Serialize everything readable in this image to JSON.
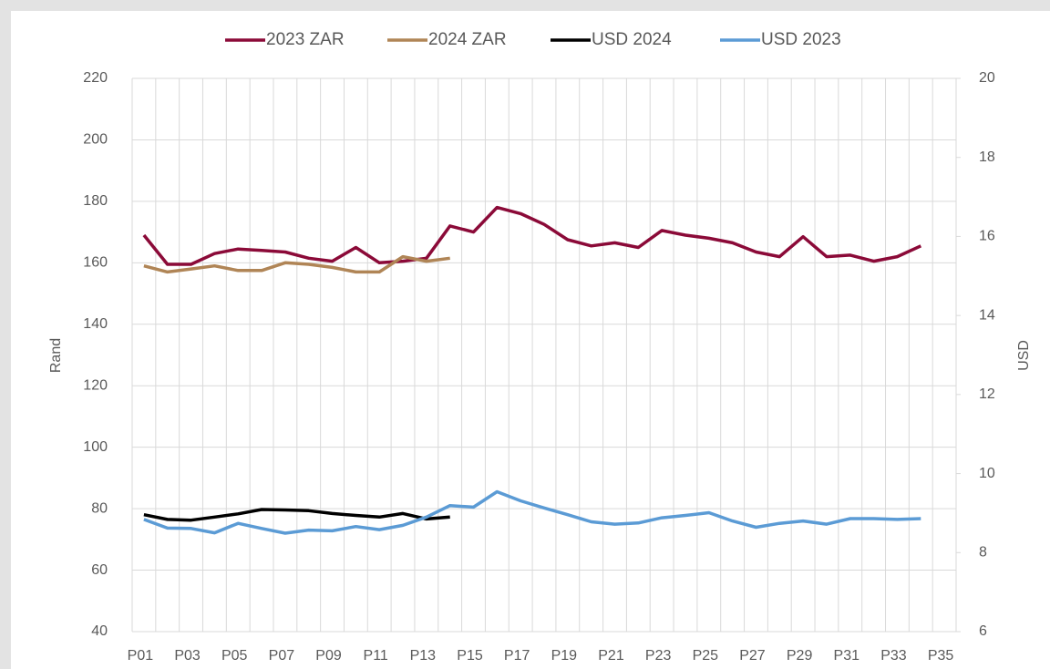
{
  "chart_data": {
    "type": "line",
    "categories": [
      "P01",
      null,
      "P03",
      null,
      "P05",
      null,
      "P07",
      null,
      "P09",
      null,
      "P11",
      null,
      "P13",
      null,
      "P15",
      null,
      "P17",
      null,
      "P19",
      null,
      "P21",
      null,
      "P23",
      null,
      "P25",
      null,
      "P27",
      null,
      "P29",
      null,
      "P31",
      null,
      "P33",
      null,
      "P35"
    ],
    "series": [
      {
        "name": "2023 ZAR",
        "color": "#8b0a38",
        "axis": "y",
        "values": [
          169,
          159.5,
          159.5,
          163,
          164.5,
          164,
          163.5,
          161.5,
          160.5,
          165,
          160,
          160.5,
          161.5,
          172,
          170,
          178,
          176,
          172.5,
          167.5,
          165.5,
          166.5,
          165,
          170.5,
          169,
          168,
          166.5,
          163.5,
          162,
          168.5,
          162,
          162.5,
          160.5,
          162,
          165.5,
          null
        ]
      },
      {
        "name": "2024 ZAR",
        "color": "#b08556",
        "axis": "y",
        "values": [
          159,
          157,
          158,
          159,
          157.5,
          157.5,
          160,
          159.5,
          158.5,
          157,
          157,
          162,
          160.5,
          161.5,
          null,
          null,
          null,
          null,
          null,
          null,
          null,
          null,
          null,
          null,
          null,
          null,
          null,
          null,
          null,
          null,
          null,
          null,
          null,
          null,
          null
        ]
      },
      {
        "name": "USD 2024",
        "color": "#000000",
        "axis": "y2",
        "values": [
          8.96,
          8.84,
          8.82,
          8.9,
          8.98,
          9.09,
          9.08,
          9.06,
          8.99,
          8.94,
          8.9,
          8.99,
          8.85,
          8.9,
          null,
          null,
          null,
          null,
          null,
          null,
          null,
          null,
          null,
          null,
          null,
          null,
          null,
          null,
          null,
          null,
          null,
          null,
          null,
          null,
          null
        ]
      },
      {
        "name": "USD 2023",
        "color": "#5b9bd5",
        "axis": "y2",
        "values": [
          8.84,
          8.62,
          8.61,
          8.5,
          8.74,
          8.61,
          8.49,
          8.57,
          8.55,
          8.66,
          8.58,
          8.69,
          8.9,
          9.19,
          9.15,
          9.54,
          9.31,
          9.13,
          8.96,
          8.78,
          8.72,
          8.75,
          8.88,
          8.94,
          9.01,
          8.8,
          8.64,
          8.74,
          8.8,
          8.72,
          8.86,
          8.86,
          8.84,
          8.86,
          null
        ]
      }
    ],
    "ylabel": "Rand",
    "y2label": "USD",
    "ylim": [
      40,
      220
    ],
    "yticks": [
      40,
      60,
      80,
      100,
      120,
      140,
      160,
      180,
      200,
      220
    ],
    "y2lim": [
      6,
      20
    ],
    "y2ticks": [
      6,
      8,
      10,
      12,
      14,
      16,
      18,
      20
    ],
    "grid": true,
    "legend": "top"
  }
}
